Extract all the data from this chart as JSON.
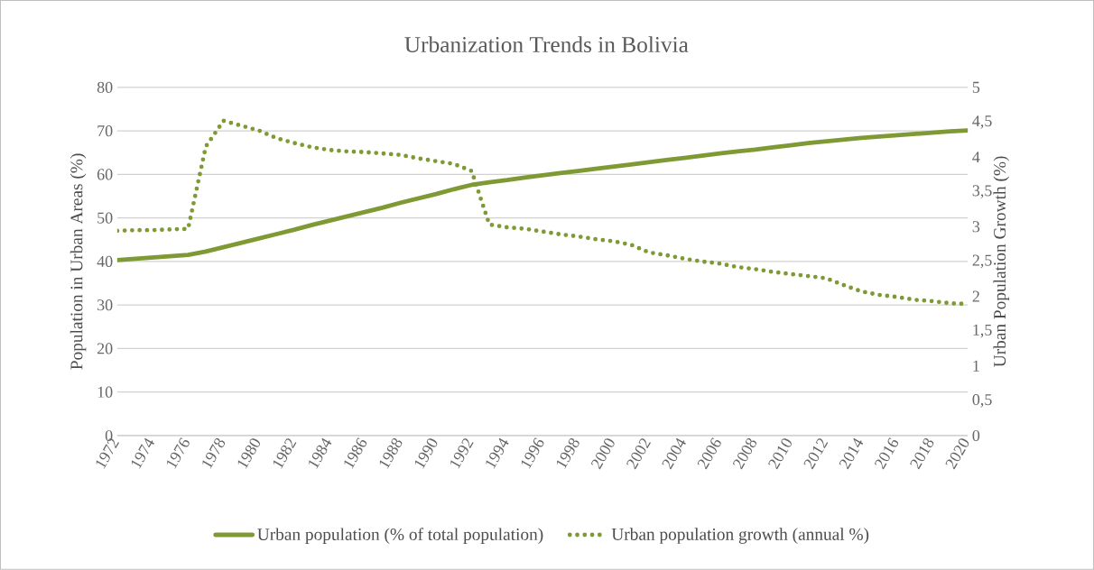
{
  "chart_data": {
    "type": "line",
    "title": "Urbanization Trends in Bolivia",
    "ylabel": "Population in Urban Areas (%)",
    "y2label": "Urban Population Growth (%)",
    "x": [
      1972,
      1973,
      1974,
      1975,
      1976,
      1977,
      1978,
      1979,
      1980,
      1981,
      1982,
      1983,
      1984,
      1985,
      1986,
      1987,
      1988,
      1989,
      1990,
      1991,
      1992,
      1993,
      1994,
      1995,
      1996,
      1997,
      1998,
      1999,
      2000,
      2001,
      2002,
      2003,
      2004,
      2005,
      2006,
      2007,
      2008,
      2009,
      2010,
      2011,
      2012,
      2013,
      2014,
      2015,
      2016,
      2017,
      2018,
      2019,
      2020
    ],
    "xlim": [
      1972,
      2020
    ],
    "xticks": [
      1972,
      1974,
      1976,
      1978,
      1980,
      1982,
      1984,
      1986,
      1988,
      1990,
      1992,
      1994,
      1996,
      1998,
      2000,
      2002,
      2004,
      2006,
      2008,
      2010,
      2012,
      2014,
      2016,
      2018,
      2020
    ],
    "ylim": [
      0,
      80
    ],
    "yticks": [
      0,
      10,
      20,
      30,
      40,
      50,
      60,
      70,
      80
    ],
    "y2lim": [
      0,
      5
    ],
    "y2ticks": [
      0,
      {
        "value": 0.5,
        "label": "0,5"
      },
      1,
      {
        "value": 1.5,
        "label": "1,5"
      },
      2,
      {
        "value": 2.5,
        "label": "2,5"
      },
      3,
      {
        "value": 3.5,
        "label": "3,5"
      },
      4,
      {
        "value": 4.5,
        "label": "4,5"
      },
      5
    ],
    "grid": "y",
    "legend": "bottom",
    "series": [
      {
        "name": "Urban population (% of total population)",
        "color": "#7f9a35",
        "line_style": "solid",
        "values": [
          40.3,
          40.6,
          40.9,
          41.2,
          41.5,
          42.3,
          43.3,
          44.3,
          45.3,
          46.3,
          47.3,
          48.4,
          49.4,
          50.4,
          51.4,
          52.4,
          53.5,
          54.5,
          55.5,
          56.6,
          57.6,
          58.2,
          58.7,
          59.3,
          59.8,
          60.3,
          60.8,
          61.3,
          61.8,
          62.3,
          62.8,
          63.3,
          63.8,
          64.3,
          64.8,
          65.3,
          65.7,
          66.2,
          66.7,
          67.2,
          67.6,
          68.0,
          68.4,
          68.7,
          69.0,
          69.3,
          69.6,
          69.9,
          70.1
        ]
      },
      {
        "name": "Urban population growth (annual %)",
        "color": "#7f9a35",
        "line_style": "dotted",
        "axis": "y2",
        "values": [
          2.94,
          2.95,
          2.95,
          2.96,
          2.97,
          4.15,
          4.52,
          4.45,
          4.38,
          4.27,
          4.2,
          4.14,
          4.1,
          4.08,
          4.07,
          4.05,
          4.03,
          3.98,
          3.94,
          3.9,
          3.8,
          3.03,
          2.99,
          2.97,
          2.93,
          2.89,
          2.86,
          2.82,
          2.79,
          2.74,
          2.63,
          2.59,
          2.54,
          2.5,
          2.47,
          2.42,
          2.39,
          2.35,
          2.32,
          2.29,
          2.26,
          2.16,
          2.07,
          2.02,
          1.99,
          1.95,
          1.93,
          1.9,
          1.89
        ]
      }
    ]
  }
}
